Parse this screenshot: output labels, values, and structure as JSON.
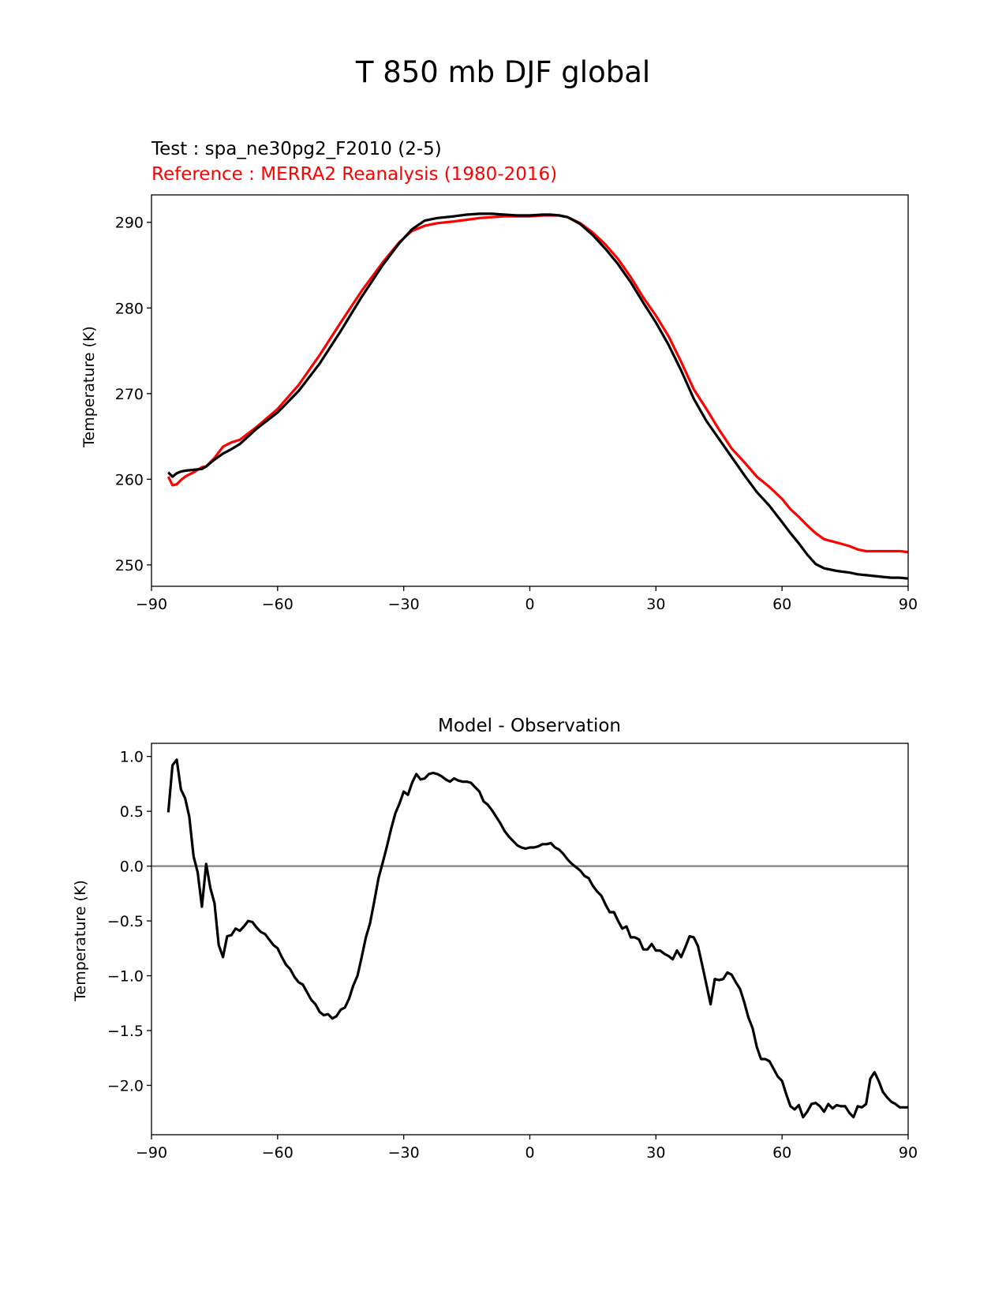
{
  "title": "T 850 mb DJF global",
  "colors": {
    "test": "#000000",
    "reference": "#ff0000",
    "zero_line": "#808080"
  },
  "chart_data": [
    {
      "type": "line",
      "test_label": "Test : spa_ne30pg2_F2010 (2-5)",
      "reference_label": "Reference : MERRA2 Reanalysis (1980-2016)",
      "xlabel": "",
      "ylabel": "Temperature (K)",
      "xlim": [
        -90,
        90
      ],
      "ylim": [
        247.5,
        293.2
      ],
      "xticks": [
        -90,
        -60,
        -30,
        0,
        30,
        60,
        90
      ],
      "xtick_labels": [
        "−90",
        "−60",
        "−30",
        "0",
        "30",
        "60",
        "90"
      ],
      "yticks": [
        250,
        260,
        270,
        280,
        290
      ],
      "ytick_labels": [
        "250",
        "260",
        "270",
        "280",
        "290"
      ],
      "grid": false,
      "series": [
        {
          "key": "test",
          "x": [
            -86,
            -85,
            -84,
            -83,
            -82,
            -80,
            -78,
            -77,
            -75,
            -73,
            -71,
            -69,
            -65,
            -60,
            -55,
            -50,
            -45,
            -40,
            -35,
            -31,
            -28,
            -25,
            -22,
            -18,
            -15,
            -12,
            -9,
            -6,
            -3,
            0,
            3,
            5,
            7,
            9,
            12,
            15,
            18,
            21,
            24,
            27,
            30,
            33,
            36,
            39,
            42,
            45,
            48,
            51,
            54,
            57,
            60,
            62,
            64,
            66,
            68,
            70,
            73,
            76,
            78,
            80,
            82,
            84,
            86,
            88,
            90
          ],
          "values": [
            260.8,
            260.3,
            260.7,
            260.9,
            261.0,
            261.1,
            261.2,
            261.5,
            262.3,
            263.0,
            263.5,
            264.1,
            265.9,
            267.8,
            270.3,
            273.5,
            277.3,
            281.3,
            285.0,
            287.6,
            289.2,
            290.2,
            290.5,
            290.7,
            290.9,
            291.0,
            291.0,
            290.9,
            290.8,
            290.8,
            290.9,
            290.9,
            290.8,
            290.6,
            289.8,
            288.5,
            286.9,
            285.1,
            283.0,
            280.6,
            278.3,
            275.7,
            272.7,
            269.4,
            266.8,
            264.7,
            262.6,
            260.5,
            258.5,
            256.9,
            255.0,
            253.7,
            252.5,
            251.2,
            250.1,
            249.6,
            249.3,
            249.1,
            248.9,
            248.8,
            248.7,
            248.6,
            248.5,
            248.5,
            248.4
          ]
        },
        {
          "key": "reference",
          "x": [
            -86,
            -85,
            -84,
            -83,
            -82,
            -80,
            -78,
            -77,
            -75,
            -73,
            -71,
            -69,
            -65,
            -60,
            -55,
            -50,
            -45,
            -40,
            -35,
            -31,
            -28,
            -25,
            -22,
            -18,
            -15,
            -12,
            -9,
            -6,
            -3,
            0,
            3,
            5,
            7,
            9,
            12,
            15,
            18,
            21,
            24,
            27,
            30,
            33,
            36,
            39,
            42,
            45,
            48,
            51,
            54,
            57,
            60,
            62,
            64,
            66,
            68,
            70,
            73,
            76,
            78,
            80,
            82,
            84,
            86,
            88,
            90
          ],
          "values": [
            260.3,
            259.3,
            259.4,
            259.9,
            260.3,
            260.8,
            261.4,
            261.5,
            262.5,
            263.8,
            264.3,
            264.6,
            266.1,
            268.2,
            271.0,
            274.5,
            278.3,
            282.0,
            285.3,
            287.7,
            289.0,
            289.6,
            289.9,
            290.1,
            290.3,
            290.5,
            290.6,
            290.7,
            290.7,
            290.7,
            290.8,
            290.8,
            290.8,
            290.6,
            289.9,
            288.8,
            287.4,
            285.7,
            283.6,
            281.2,
            279.1,
            276.7,
            273.7,
            270.5,
            268.2,
            265.8,
            263.6,
            262.0,
            260.3,
            259.1,
            257.7,
            256.5,
            255.6,
            254.6,
            253.7,
            253.0,
            252.6,
            252.2,
            251.8,
            251.6,
            251.6,
            251.6,
            251.6,
            251.6,
            251.5
          ]
        }
      ]
    },
    {
      "type": "line",
      "title": "Model - Observation",
      "xlabel": "",
      "ylabel": "Temperature (K)",
      "xlim": [
        -90,
        90
      ],
      "ylim": [
        -2.45,
        1.12
      ],
      "xticks": [
        -90,
        -60,
        -30,
        0,
        30,
        60,
        90
      ],
      "xtick_labels": [
        "−90",
        "−60",
        "−30",
        "0",
        "30",
        "60",
        "90"
      ],
      "yticks": [
        -2.0,
        -1.5,
        -1.0,
        -0.5,
        0.0,
        0.5,
        1.0
      ],
      "ytick_labels": [
        "−2.0",
        "−1.5",
        "−1.0",
        "−0.5",
        "0.0",
        "0.5",
        "1.0"
      ],
      "grid": false,
      "zero_line": 0.0,
      "series": [
        {
          "key": "difference",
          "x": [
            -86,
            -85,
            -84,
            -83,
            -82,
            -81,
            -80,
            -79,
            -78,
            -77,
            -76,
            -75,
            -74,
            -73,
            -72,
            -71,
            -70,
            -69,
            -68,
            -67,
            -66,
            -65,
            -64,
            -63,
            -62,
            -61,
            -60,
            -59,
            -58,
            -57,
            -56,
            -55,
            -54,
            -53,
            -52,
            -51,
            -50,
            -49,
            -48,
            -47,
            -46,
            -45,
            -44,
            -43,
            -42,
            -41,
            -40,
            -39,
            -38,
            -37,
            -36,
            -35,
            -34,
            -33,
            -32,
            -31,
            -30,
            -29,
            -28,
            -27,
            -26,
            -25,
            -24,
            -23,
            -22,
            -21,
            -20,
            -19,
            -18,
            -17,
            -16,
            -15,
            -14,
            -13,
            -12,
            -11,
            -10,
            -9,
            -8,
            -7,
            -6,
            -5,
            -4,
            -3,
            -2,
            -1,
            0,
            1,
            2,
            3,
            4,
            5,
            6,
            7,
            8,
            9,
            10,
            11,
            12,
            13,
            14,
            15,
            16,
            17,
            18,
            19,
            20,
            21,
            22,
            23,
            24,
            25,
            26,
            27,
            28,
            29,
            30,
            31,
            32,
            33,
            34,
            35,
            36,
            37,
            38,
            39,
            40,
            41,
            42,
            43,
            44,
            45,
            46,
            47,
            48,
            49,
            50,
            51,
            52,
            53,
            54,
            55,
            56,
            57,
            58,
            59,
            60,
            61,
            62,
            63,
            64,
            65,
            66,
            67,
            68,
            69,
            70,
            71,
            72,
            73,
            74,
            75,
            76,
            77,
            78,
            79,
            80,
            81,
            82,
            83,
            84,
            85,
            86,
            87,
            88,
            89,
            90
          ],
          "values": [
            0.49,
            0.92,
            0.97,
            0.7,
            0.62,
            0.45,
            0.09,
            -0.06,
            -0.37,
            0.02,
            -0.2,
            -0.34,
            -0.72,
            -0.83,
            -0.64,
            -0.63,
            -0.57,
            -0.59,
            -0.55,
            -0.5,
            -0.51,
            -0.56,
            -0.6,
            -0.62,
            -0.67,
            -0.72,
            -0.75,
            -0.83,
            -0.9,
            -0.94,
            -1.01,
            -1.06,
            -1.08,
            -1.15,
            -1.22,
            -1.26,
            -1.33,
            -1.36,
            -1.35,
            -1.39,
            -1.37,
            -1.31,
            -1.29,
            -1.21,
            -1.09,
            -1.0,
            -0.83,
            -0.65,
            -0.52,
            -0.32,
            -0.11,
            0.03,
            0.18,
            0.34,
            0.48,
            0.57,
            0.68,
            0.65,
            0.76,
            0.84,
            0.79,
            0.8,
            0.84,
            0.85,
            0.84,
            0.82,
            0.79,
            0.77,
            0.8,
            0.78,
            0.77,
            0.77,
            0.76,
            0.72,
            0.68,
            0.59,
            0.56,
            0.51,
            0.45,
            0.39,
            0.32,
            0.27,
            0.23,
            0.19,
            0.17,
            0.16,
            0.17,
            0.17,
            0.18,
            0.2,
            0.2,
            0.21,
            0.17,
            0.15,
            0.11,
            0.06,
            0.02,
            -0.01,
            -0.04,
            -0.09,
            -0.11,
            -0.18,
            -0.23,
            -0.27,
            -0.35,
            -0.42,
            -0.42,
            -0.5,
            -0.57,
            -0.55,
            -0.65,
            -0.65,
            -0.67,
            -0.76,
            -0.76,
            -0.71,
            -0.77,
            -0.77,
            -0.8,
            -0.82,
            -0.85,
            -0.77,
            -0.83,
            -0.74,
            -0.64,
            -0.65,
            -0.73,
            -0.9,
            -1.08,
            -1.26,
            -1.03,
            -1.04,
            -1.03,
            -0.97,
            -0.99,
            -1.06,
            -1.12,
            -1.24,
            -1.38,
            -1.48,
            -1.65,
            -1.76,
            -1.76,
            -1.78,
            -1.85,
            -1.92,
            -1.96,
            -2.08,
            -2.19,
            -2.22,
            -2.18,
            -2.29,
            -2.24,
            -2.17,
            -2.16,
            -2.19,
            -2.24,
            -2.17,
            -2.21,
            -2.18,
            -2.19,
            -2.19,
            -2.25,
            -2.29,
            -2.19,
            -2.2,
            -2.17,
            -1.94,
            -1.88,
            -1.96,
            -2.06,
            -2.11,
            -2.15,
            -2.17,
            -2.2,
            -2.2,
            -2.2
          ]
        }
      ]
    }
  ]
}
